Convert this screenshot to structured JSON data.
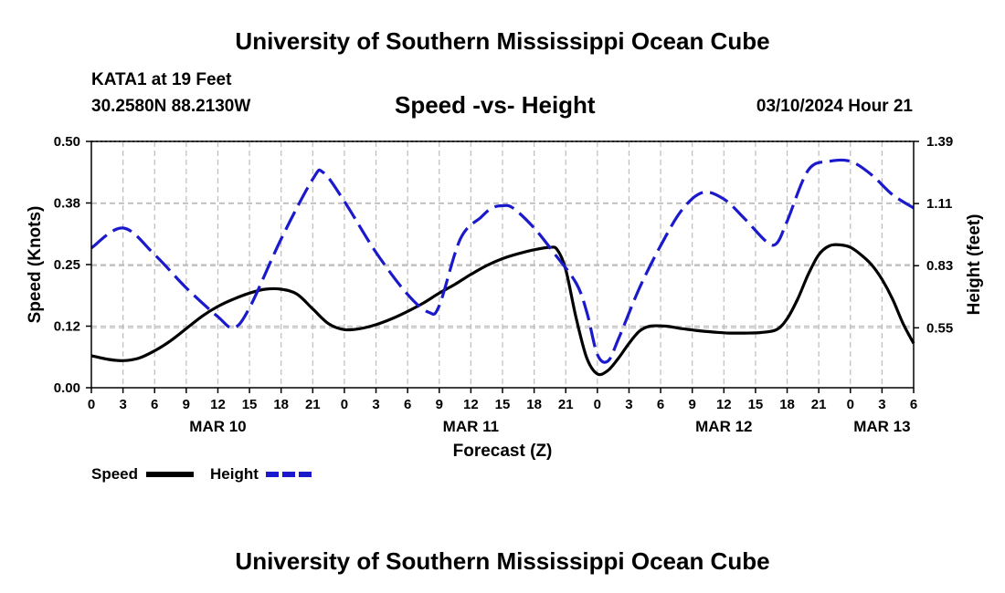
{
  "header": {
    "title": "University of Southern Mississippi Ocean Cube",
    "station": "KATA1 at 19 Feet",
    "coords": "30.2580N  88.2130W",
    "subtitle": "Speed -vs- Height",
    "datetime": "03/10/2024 Hour 21"
  },
  "footer": {
    "title": "University of Southern Mississippi Ocean Cube"
  },
  "chart_data": {
    "type": "line",
    "xlabel": "Forecast (Z)",
    "ylabel": "Speed (Knots)",
    "y2label": "Height (feet)",
    "xlim": [
      0,
      78
    ],
    "ylim": [
      0,
      0.5
    ],
    "y2lim": [
      0.28,
      1.39
    ],
    "x_ticks": [
      0,
      3,
      6,
      9,
      12,
      15,
      18,
      21,
      24,
      27,
      30,
      33,
      36,
      39,
      42,
      45,
      48,
      51,
      54,
      57,
      60,
      63,
      66,
      69,
      72,
      75,
      78
    ],
    "x_tick_labels": [
      "0",
      "3",
      "6",
      "9",
      "12",
      "15",
      "18",
      "21",
      "0",
      "3",
      "6",
      "9",
      "12",
      "15",
      "18",
      "21",
      "0",
      "3",
      "6",
      "9",
      "12",
      "15",
      "18",
      "21",
      "0",
      "3",
      "6"
    ],
    "date_labels": [
      {
        "label": "MAR 10",
        "x": 12
      },
      {
        "label": "MAR 11",
        "x": 36
      },
      {
        "label": "MAR 12",
        "x": 60
      },
      {
        "label": "MAR 13",
        "x": 75
      }
    ],
    "y_ticks": [
      0,
      0.125,
      0.25,
      0.375,
      0.5
    ],
    "y_tick_labels": [
      "0.00",
      "0.12",
      "0.25",
      "0.38",
      "0.50"
    ],
    "y2_ticks": [
      0.55,
      0.83,
      1.11,
      1.39
    ],
    "y2_tick_labels": [
      "0.55",
      "0.83",
      "1.11",
      "1.39"
    ],
    "grid": true,
    "series": [
      {
        "name": "Speed",
        "axis": "left",
        "color": "#000000",
        "dash": "solid",
        "points": [
          [
            0,
            0.065
          ],
          [
            1.5,
            0.058
          ],
          [
            3,
            0.055
          ],
          [
            4.5,
            0.06
          ],
          [
            6,
            0.075
          ],
          [
            7.5,
            0.095
          ],
          [
            9,
            0.12
          ],
          [
            10.5,
            0.145
          ],
          [
            12,
            0.165
          ],
          [
            13.5,
            0.18
          ],
          [
            15,
            0.192
          ],
          [
            16.5,
            0.2
          ],
          [
            18,
            0.2
          ],
          [
            19.5,
            0.19
          ],
          [
            21,
            0.16
          ],
          [
            22.5,
            0.13
          ],
          [
            24,
            0.118
          ],
          [
            25.5,
            0.12
          ],
          [
            27,
            0.128
          ],
          [
            28.5,
            0.14
          ],
          [
            30,
            0.155
          ],
          [
            31.5,
            0.172
          ],
          [
            33,
            0.192
          ],
          [
            34.5,
            0.21
          ],
          [
            36,
            0.23
          ],
          [
            37.5,
            0.248
          ],
          [
            39,
            0.262
          ],
          [
            40.5,
            0.272
          ],
          [
            42,
            0.28
          ],
          [
            43.5,
            0.285
          ],
          [
            44.2,
            0.28
          ],
          [
            45,
            0.24
          ],
          [
            46,
            0.14
          ],
          [
            47,
            0.06
          ],
          [
            48,
            0.028
          ],
          [
            49,
            0.035
          ],
          [
            50,
            0.06
          ],
          [
            51,
            0.09
          ],
          [
            52,
            0.115
          ],
          [
            53,
            0.125
          ],
          [
            54.5,
            0.125
          ],
          [
            56,
            0.12
          ],
          [
            57.5,
            0.116
          ],
          [
            59,
            0.113
          ],
          [
            60.5,
            0.111
          ],
          [
            62,
            0.111
          ],
          [
            63.5,
            0.112
          ],
          [
            65,
            0.118
          ],
          [
            66,
            0.14
          ],
          [
            67,
            0.18
          ],
          [
            68,
            0.23
          ],
          [
            69,
            0.27
          ],
          [
            70,
            0.288
          ],
          [
            71,
            0.29
          ],
          [
            72,
            0.285
          ],
          [
            73,
            0.27
          ],
          [
            74,
            0.25
          ],
          [
            75,
            0.22
          ],
          [
            76,
            0.18
          ],
          [
            77,
            0.13
          ],
          [
            78,
            0.09
          ]
        ]
      },
      {
        "name": "Height",
        "axis": "right",
        "color": "#1a1acc",
        "dash": "dashed",
        "points": [
          [
            0,
            0.91
          ],
          [
            3,
            1.0
          ],
          [
            6,
            0.88
          ],
          [
            9,
            0.73
          ],
          [
            12,
            0.6
          ],
          [
            13.5,
            0.55
          ],
          [
            15,
            0.64
          ],
          [
            18,
            0.95
          ],
          [
            21,
            1.22
          ],
          [
            22,
            1.25
          ],
          [
            24,
            1.12
          ],
          [
            27,
            0.89
          ],
          [
            30,
            0.7
          ],
          [
            32,
            0.62
          ],
          [
            33,
            0.65
          ],
          [
            35,
            0.95
          ],
          [
            37,
            1.05
          ],
          [
            38,
            1.09
          ],
          [
            39,
            1.1
          ],
          [
            40,
            1.09
          ],
          [
            42,
            1.0
          ],
          [
            44,
            0.88
          ],
          [
            46,
            0.75
          ],
          [
            47,
            0.62
          ],
          [
            48,
            0.43
          ],
          [
            49,
            0.4
          ],
          [
            50,
            0.5
          ],
          [
            52,
            0.73
          ],
          [
            54,
            0.92
          ],
          [
            56,
            1.08
          ],
          [
            58,
            1.16
          ],
          [
            60,
            1.13
          ],
          [
            62,
            1.04
          ],
          [
            64,
            0.94
          ],
          [
            65,
            0.93
          ],
          [
            66,
            1.03
          ],
          [
            68,
            1.26
          ],
          [
            70,
            1.3
          ],
          [
            72,
            1.3
          ],
          [
            74,
            1.24
          ],
          [
            76,
            1.15
          ],
          [
            78,
            1.09
          ]
        ]
      }
    ],
    "legend": [
      {
        "label": "Speed",
        "color": "#000000",
        "dash": "solid"
      },
      {
        "label": "Height",
        "color": "#1a1acc",
        "dash": "dashed"
      }
    ]
  }
}
